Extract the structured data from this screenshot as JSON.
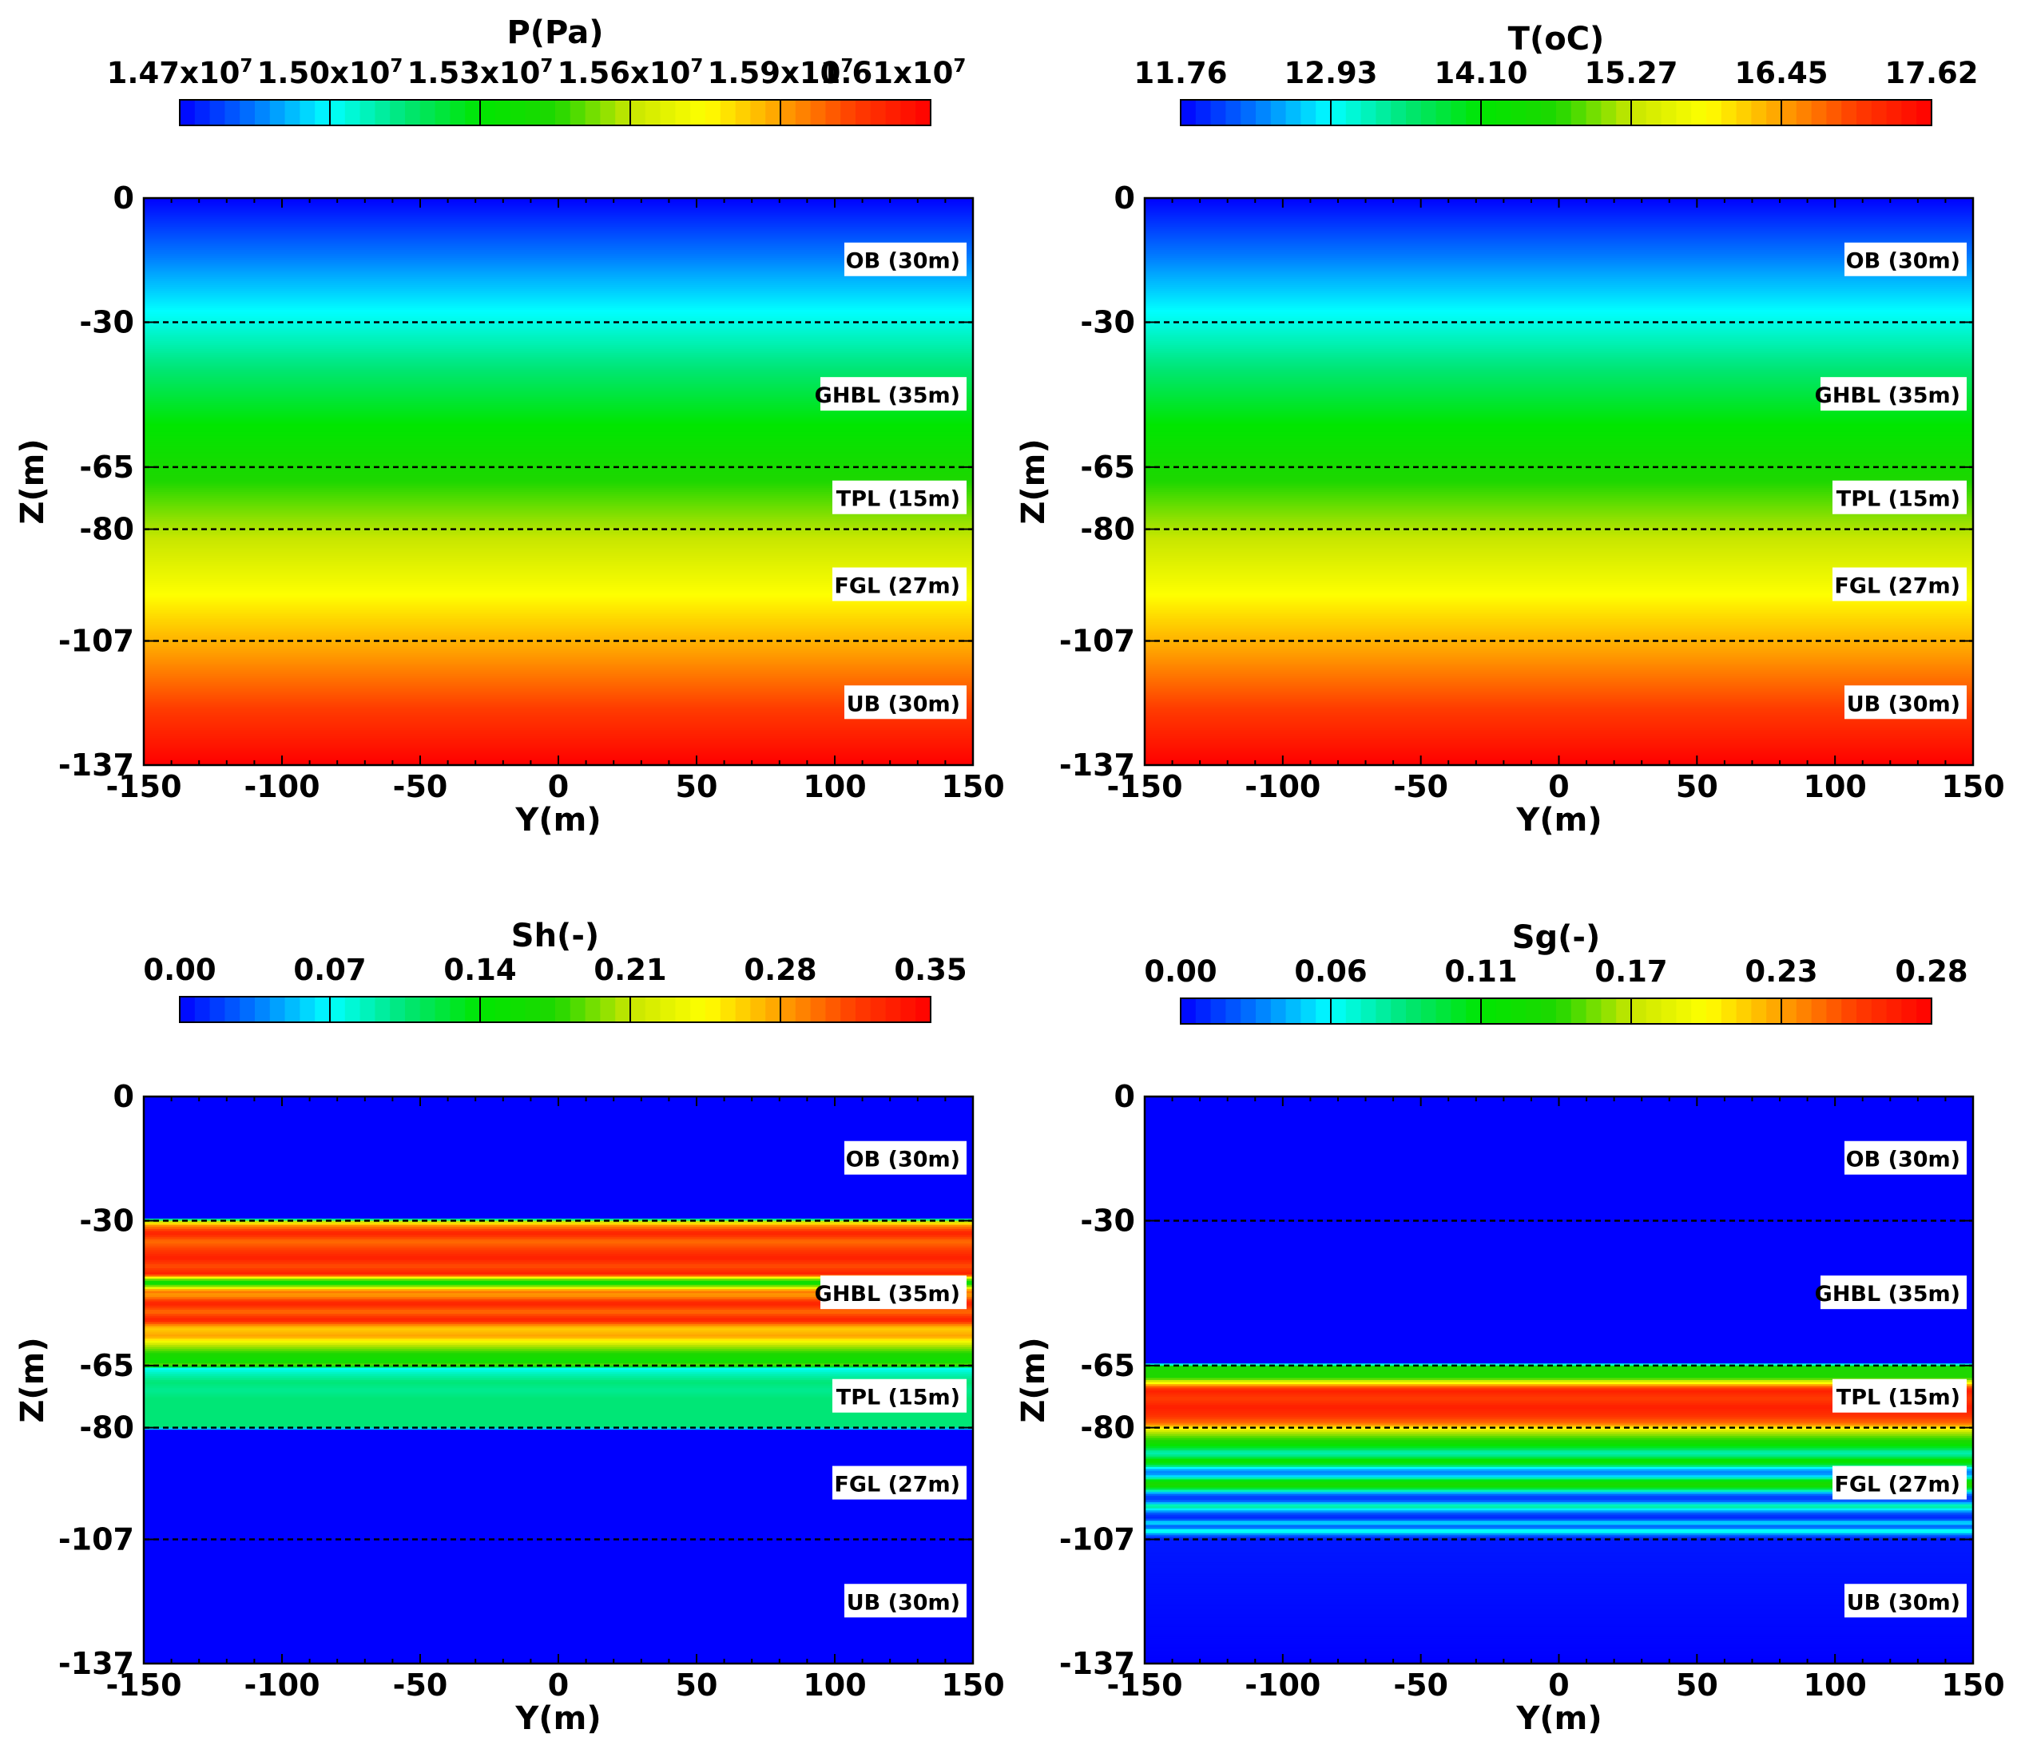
{
  "chart_data": [
    {
      "type": "heatmap",
      "variable": "P",
      "colorbar": {
        "title": "P(Pa)",
        "ticks": [
          "1.47",
          "1.50",
          "1.53",
          "1.56",
          "1.59",
          "1.61"
        ],
        "tick_exponent": "7",
        "min": 14700000,
        "max": 16100000
      },
      "xlabel": "Y(m)",
      "ylabel": "Z(m)",
      "xlim": [
        -150,
        150
      ],
      "ylim": [
        -137,
        0
      ],
      "xticks": [
        "-150",
        "-100",
        "-50",
        "0",
        "50",
        "100",
        "150"
      ],
      "yticks": [
        "0",
        "-30",
        "-65",
        "-80",
        "-107",
        "-137"
      ],
      "profile": {
        "z": [
          0,
          -137
        ],
        "v": [
          0.0,
          1.0
        ]
      }
    },
    {
      "type": "heatmap",
      "variable": "T",
      "colorbar": {
        "title": "T(oC)",
        "ticks": [
          "11.76",
          "12.93",
          "14.10",
          "15.27",
          "16.45",
          "17.62"
        ],
        "min": 11.76,
        "max": 17.62
      },
      "xlabel": "Y(m)",
      "ylabel": "Z(m)",
      "xlim": [
        -150,
        150
      ],
      "ylim": [
        -137,
        0
      ],
      "xticks": [
        "-150",
        "-100",
        "-50",
        "0",
        "50",
        "100",
        "150"
      ],
      "yticks": [
        "0",
        "-30",
        "-65",
        "-80",
        "-107",
        "-137"
      ],
      "profile": {
        "z": [
          0,
          -137
        ],
        "v": [
          0.0,
          1.0
        ]
      }
    },
    {
      "type": "heatmap",
      "variable": "Sh",
      "colorbar": {
        "title": "Sh(-)",
        "ticks": [
          "0.00",
          "0.07",
          "0.14",
          "0.21",
          "0.28",
          "0.35"
        ],
        "min": 0.0,
        "max": 0.35
      },
      "xlabel": "Y(m)",
      "ylabel": "Z(m)",
      "xlim": [
        -150,
        150
      ],
      "ylim": [
        -137,
        0
      ],
      "xticks": [
        "-150",
        "-100",
        "-50",
        "0",
        "50",
        "100",
        "150"
      ],
      "yticks": [
        "0",
        "-30",
        "-65",
        "-80",
        "-107",
        "-137"
      ],
      "profile": {
        "z": [
          0,
          -29.5,
          -30,
          -31,
          -33,
          -35,
          -37,
          -39,
          -41,
          -43,
          -44,
          -45,
          -46,
          -47,
          -48,
          -50,
          -52,
          -54,
          -56,
          -58,
          -60,
          -62,
          -64,
          -65,
          -65.5,
          -67,
          -69,
          -71,
          -73,
          -75,
          -77,
          -79,
          -80,
          -80.5,
          -137
        ],
        "v": [
          0.0,
          0.0,
          0.55,
          0.8,
          0.95,
          0.85,
          0.9,
          0.95,
          0.88,
          0.95,
          0.6,
          0.4,
          0.6,
          0.85,
          0.8,
          0.95,
          0.85,
          0.95,
          0.75,
          0.8,
          0.6,
          0.5,
          0.45,
          0.55,
          0.2,
          0.25,
          0.3,
          0.28,
          0.3,
          0.3,
          0.3,
          0.3,
          0.3,
          0.0,
          0.0
        ]
      }
    },
    {
      "type": "heatmap",
      "variable": "Sg",
      "colorbar": {
        "title": "Sg(-)",
        "ticks": [
          "0.00",
          "0.06",
          "0.11",
          "0.17",
          "0.23",
          "0.28"
        ],
        "min": 0.0,
        "max": 0.28
      },
      "xlabel": "Y(m)",
      "ylabel": "Z(m)",
      "xlim": [
        -150,
        150
      ],
      "ylim": [
        -137,
        0
      ],
      "xticks": [
        "-150",
        "-100",
        "-50",
        "0",
        "50",
        "100",
        "150"
      ],
      "yticks": [
        "0",
        "-30",
        "-65",
        "-80",
        "-107",
        "-137"
      ],
      "profile": {
        "z": [
          0,
          -64.5,
          -65,
          -66,
          -68,
          -69,
          -70,
          -71,
          -73,
          -75,
          -77,
          -79,
          -81,
          -83,
          -84,
          -85,
          -86,
          -87,
          -88,
          -89,
          -90,
          -91,
          -92,
          -93,
          -94,
          -95,
          -96,
          -97,
          -98,
          -99,
          -100,
          -101,
          -102,
          -103,
          -104,
          -105,
          -106,
          -107,
          -137
        ],
        "v": [
          0.0,
          0.0,
          0.45,
          0.5,
          0.5,
          0.65,
          0.85,
          0.95,
          0.9,
          0.95,
          0.92,
          0.85,
          0.6,
          0.5,
          0.45,
          0.35,
          0.25,
          0.3,
          0.45,
          0.35,
          0.15,
          0.1,
          0.2,
          0.45,
          0.5,
          0.3,
          0.1,
          0.04,
          0.1,
          0.3,
          0.15,
          0.05,
          0.03,
          0.2,
          0.05,
          0.25,
          0.08,
          0.02,
          0.0
        ]
      }
    }
  ],
  "layers": [
    {
      "label": "OB  (30m)",
      "top": 0,
      "bottom": -30
    },
    {
      "label": "GHBL  (35m)",
      "top": -30,
      "bottom": -65
    },
    {
      "label": "TPL  (15m)",
      "top": -65,
      "bottom": -80
    },
    {
      "label": "FGL  (27m)",
      "top": -80,
      "bottom": -107
    },
    {
      "label": "UB  (30m)",
      "top": -107,
      "bottom": -137
    }
  ],
  "boundaries": [
    -30,
    -65,
    -80,
    -107
  ],
  "colormap": [
    "#0000ff",
    "#0078ff",
    "#00ffff",
    "#00e676",
    "#00e600",
    "#1ed700",
    "#c8e600",
    "#ffff00",
    "#ffa000",
    "#ff3c00",
    "#ff0000"
  ]
}
